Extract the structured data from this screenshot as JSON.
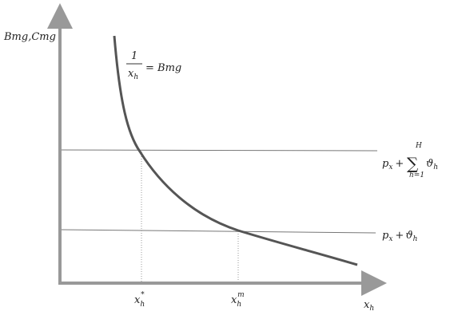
{
  "y_axis_label": "Bmg,Cmg",
  "x_axis_label": {
    "base": "x",
    "sub": "h"
  },
  "curve_label": {
    "numerator": "1",
    "denominator": {
      "base": "x",
      "sub": "h"
    },
    "rhs": "= Bmg"
  },
  "lines": [
    {
      "label": {
        "base": "p",
        "sub": "x",
        "op": "+",
        "sum": "∑",
        "sum_upper": "H",
        "sum_lower": "h=1",
        "term": "ϑ",
        "term_sub": "h"
      }
    },
    {
      "label": {
        "base": "p",
        "sub": "x",
        "op": "+",
        "term": "ϑ",
        "term_sub": "h"
      }
    }
  ],
  "x_marks": [
    {
      "base": "x",
      "sub": "h",
      "sup": "*"
    },
    {
      "base": "x",
      "sub": "h",
      "sup": "m"
    }
  ]
}
